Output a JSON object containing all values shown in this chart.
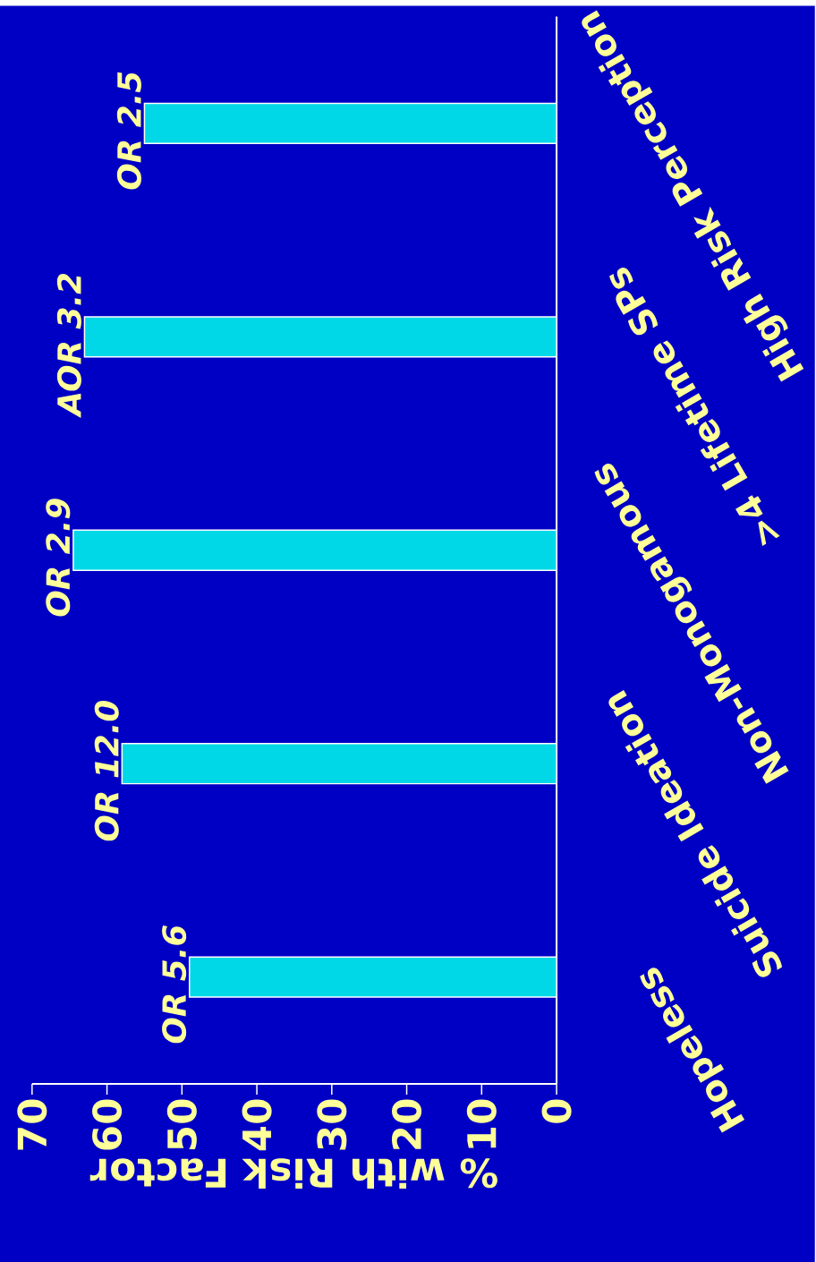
{
  "chart_data": {
    "type": "bar",
    "orientation": "horizontal",
    "xlabel": "% with Risk Factor",
    "categories": [
      "High Risk Perception",
      ">4 Lifetime SPs",
      "Non-Monogamous",
      "Suicide Ideation",
      "Hopeless"
    ],
    "values": [
      55,
      63,
      64.5,
      58,
      49
    ],
    "color": "#00d8e8",
    "xlim": [
      70,
      0
    ],
    "xticks": [
      0,
      10,
      20,
      30,
      40,
      50,
      60,
      70
    ],
    "annotations": [
      "OR 2.5",
      "AOR 3.2",
      "OR 2.9",
      "OR 12.0",
      "OR 5.6"
    ]
  }
}
